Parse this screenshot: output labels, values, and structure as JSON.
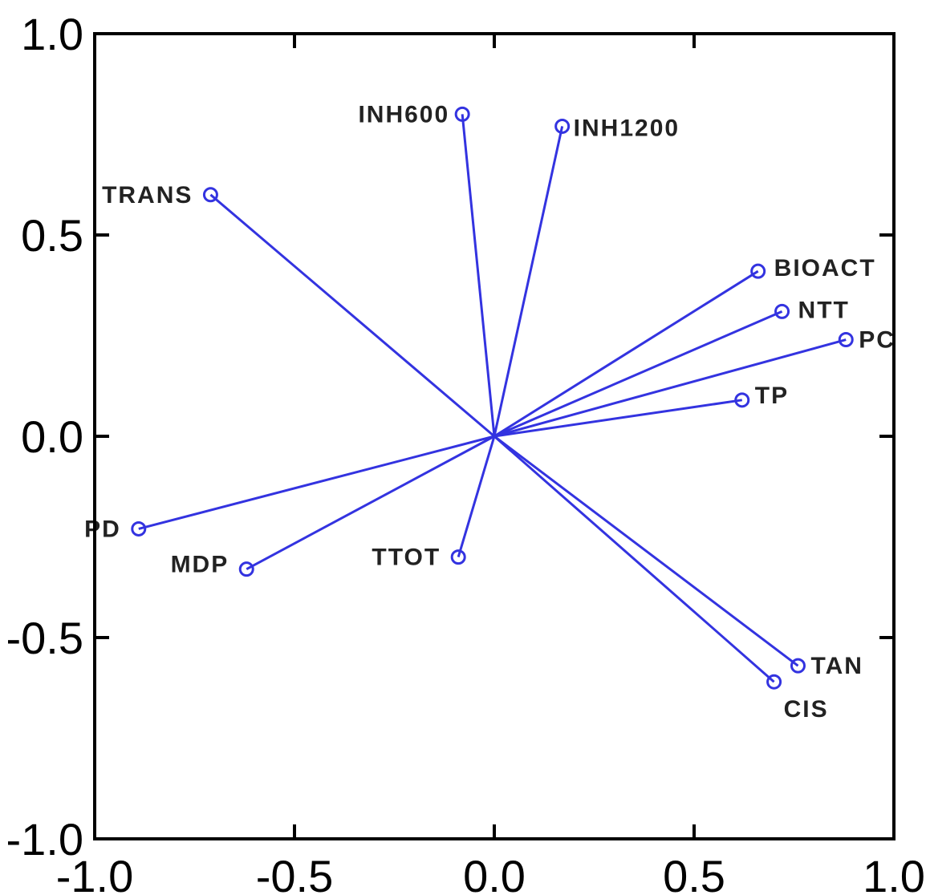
{
  "chart_data": {
    "type": "scatter",
    "title": "",
    "xlabel": "",
    "ylabel": "",
    "xlim": [
      -1.0,
      1.0
    ],
    "ylim": [
      -1.0,
      1.0
    ],
    "x_ticks": [
      -1.0,
      -0.5,
      0.0,
      0.5,
      1.0
    ],
    "y_ticks": [
      -1.0,
      -0.5,
      0.0,
      0.5,
      1.0
    ],
    "x_tick_labels": [
      "-1.0",
      "-0.5",
      "0.0",
      "0.5",
      "1.0"
    ],
    "y_tick_labels": [
      "-1.0",
      "-0.5",
      "0.0",
      "0.5",
      "1.0"
    ],
    "grid": false,
    "color": "#3333e0",
    "points": [
      {
        "label": "INH600",
        "x": -0.08,
        "y": 0.8
      },
      {
        "label": "INH1200",
        "x": 0.17,
        "y": 0.77
      },
      {
        "label": "TRANS",
        "x": -0.71,
        "y": 0.6
      },
      {
        "label": "BIOACT",
        "x": 0.66,
        "y": 0.41
      },
      {
        "label": "NTT",
        "x": 0.72,
        "y": 0.31
      },
      {
        "label": "PC",
        "x": 0.88,
        "y": 0.24
      },
      {
        "label": "TP",
        "x": 0.62,
        "y": 0.09
      },
      {
        "label": "PD",
        "x": -0.89,
        "y": -0.23
      },
      {
        "label": "MDP",
        "x": -0.62,
        "y": -0.33
      },
      {
        "label": "TTOT",
        "x": -0.09,
        "y": -0.3
      },
      {
        "label": "TAN",
        "x": 0.76,
        "y": -0.57
      },
      {
        "label": "CIS",
        "x": 0.7,
        "y": -0.61
      }
    ]
  }
}
